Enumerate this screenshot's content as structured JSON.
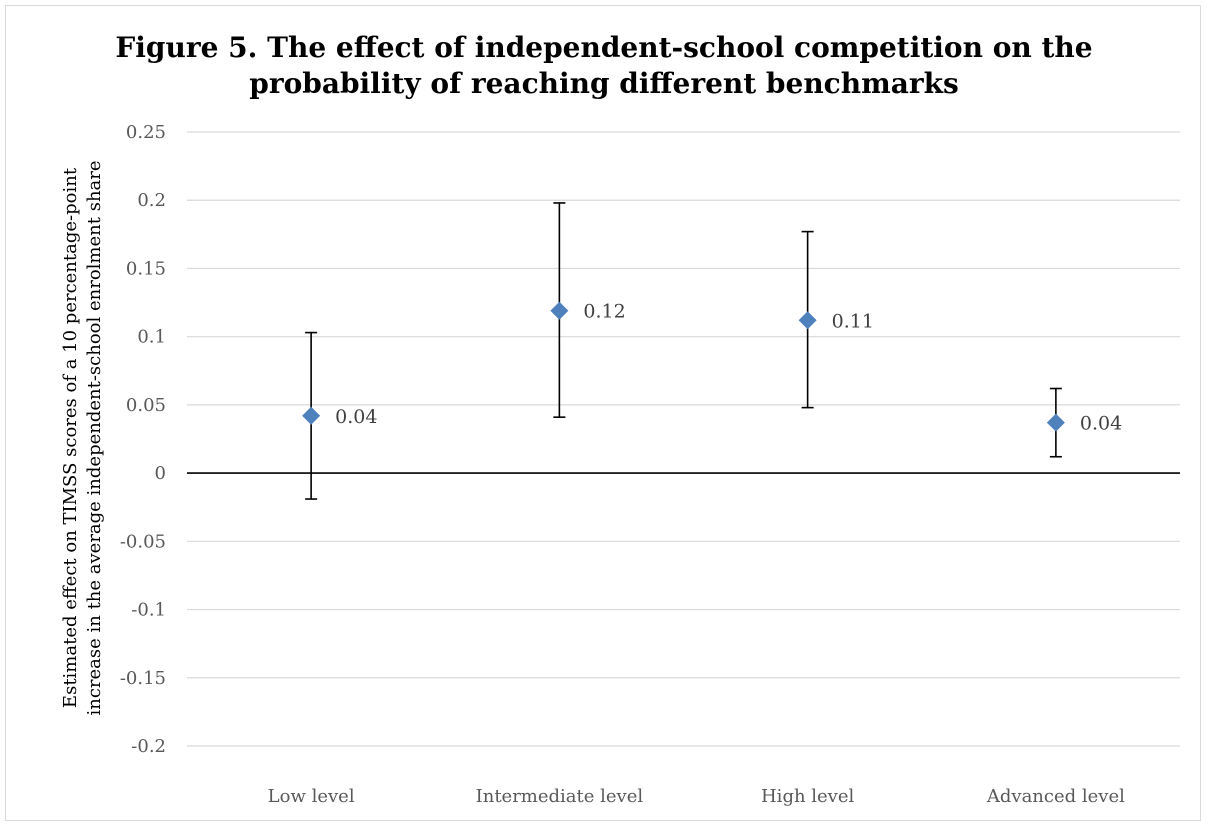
{
  "chart_data": {
    "type": "scatter",
    "title_lines": [
      "Figure 5. The effect of independent-school competition on the",
      "probability of reaching different benchmarks"
    ],
    "ylabel_lines": [
      "Estimated effect on TIMSS scores of a 10 percentage-point",
      "increase in the average independent-school enrolment share"
    ],
    "xlabel": "",
    "categories": [
      "Low level",
      "Intermediate level",
      "High level",
      "Advanced level"
    ],
    "series": [
      {
        "values": [
          0.042,
          0.119,
          0.112,
          0.037
        ],
        "labels": [
          "0.04",
          "0.12",
          "0.11",
          "0.04"
        ],
        "error_low": [
          -0.019,
          0.041,
          0.048,
          0.012
        ],
        "error_high": [
          0.103,
          0.198,
          0.177,
          0.062
        ]
      }
    ],
    "ylim": [
      -0.2,
      0.25
    ],
    "y_ticks": [
      -0.2,
      -0.15,
      -0.1,
      -0.05,
      0,
      0.05,
      0.1,
      0.15,
      0.2,
      0.25
    ],
    "y_tick_labels": [
      "-0.2",
      "-0.15",
      "-0.1",
      "-0.05",
      "0",
      "0.05",
      "0.1",
      "0.15",
      "0.2",
      "0.25"
    ],
    "grid": true,
    "legend": "none",
    "marker": "diamond",
    "colors": {
      "marker": "#4f81bd",
      "gridline": "#d9d9d9",
      "zero_line": "#000000",
      "error_bar": "#000000"
    }
  }
}
